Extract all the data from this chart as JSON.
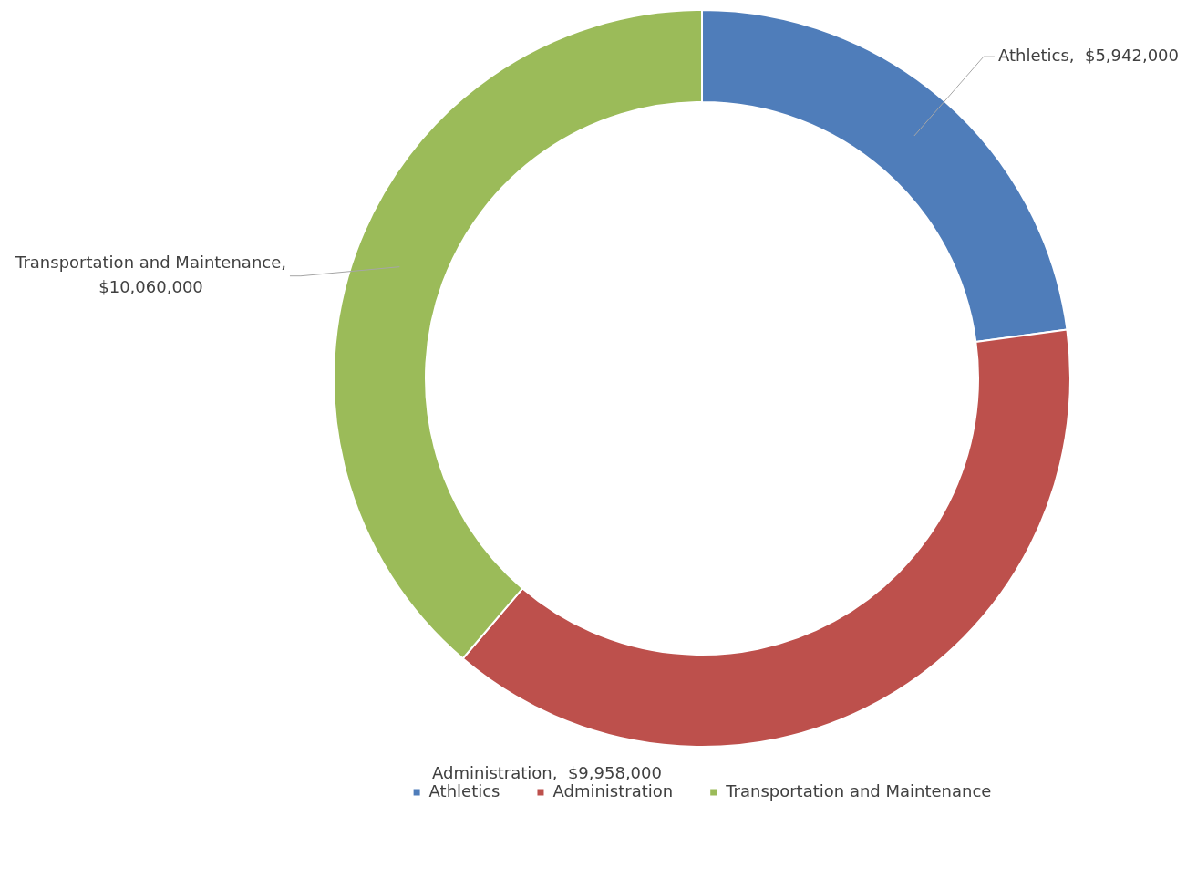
{
  "chart_data": {
    "type": "donut",
    "categories": [
      "Athletics",
      "Administration",
      "Transportation and Maintenance"
    ],
    "values": [
      5942000,
      9958000,
      10060000
    ],
    "colors": [
      "#4f7dba",
      "#bd504c",
      "#9bbb59"
    ],
    "value_labels": [
      "Athletics,  $5,942,000",
      "Administration,  $9,958,000",
      "Transportation and Maintenance, $10,060,000"
    ],
    "legend": "bottom"
  }
}
